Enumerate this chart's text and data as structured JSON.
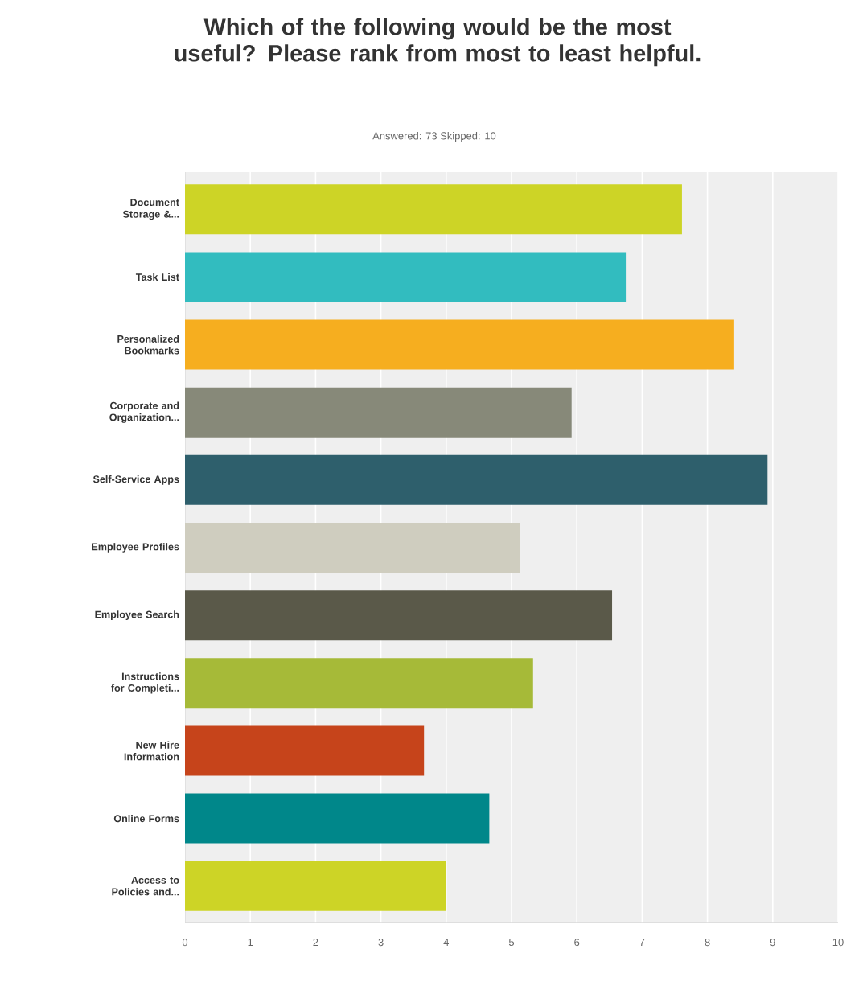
{
  "chart_data": {
    "type": "bar",
    "orientation": "horizontal",
    "title": "Which of the following would be the most useful? Please rank from most to least helpful.",
    "subtitle": "Answered: 73    Skipped: 10",
    "categories": [
      "Document Storage &...",
      "Task List",
      "Personalized Bookmarks",
      "Corporate and Organization...",
      "Self-Service Apps",
      "Employee Profiles",
      "Employee Search",
      "Instructions for Completi...",
      "New Hire Information",
      "Online Forms",
      "Access to Policies and..."
    ],
    "values": [
      7.61,
      6.75,
      8.41,
      5.92,
      8.92,
      5.13,
      6.54,
      5.33,
      3.66,
      4.66,
      4.0
    ],
    "colors": [
      "#cdd426",
      "#32bcbf",
      "#f6ae1f",
      "#878979",
      "#2e5f6c",
      "#cfcdbf",
      "#5a5949",
      "#a6ba38",
      "#c6441b",
      "#00878a",
      "#cdd426"
    ],
    "xlim": [
      0,
      10
    ],
    "xticks": [
      0,
      1,
      2,
      3,
      4,
      5,
      6,
      7,
      8,
      9,
      10
    ],
    "grid": "x"
  }
}
